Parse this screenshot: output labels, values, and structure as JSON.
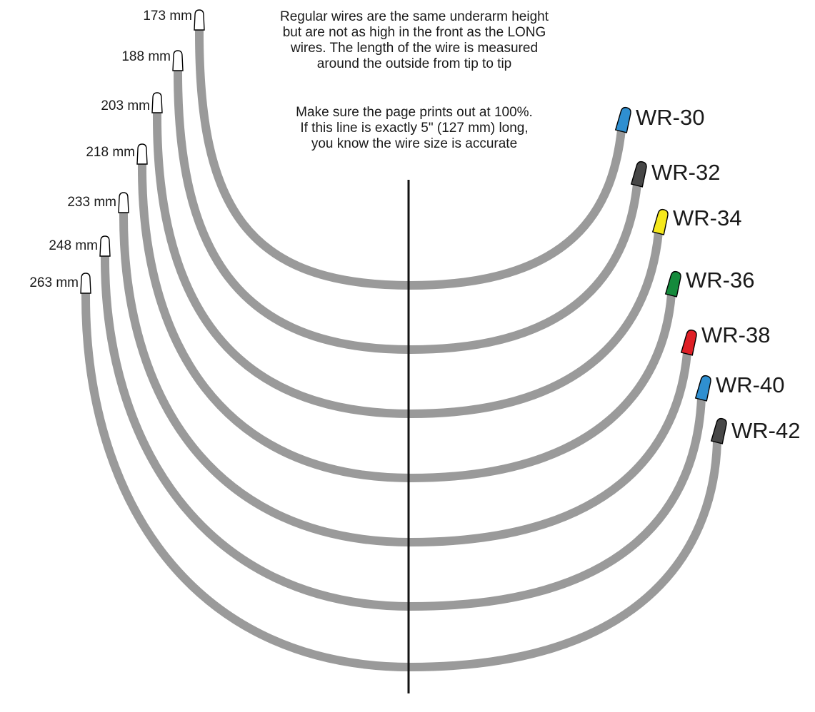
{
  "notes": {
    "paragraph_1": [
      "Regular  wires are the same underarm height",
      "but are not as high in the front as the LONG",
      "wires. The length of the wire is measured",
      "around the outside from tip to tip"
    ],
    "paragraph_2": [
      "Make sure the page prints out at 100%.",
      "If this line is exactly 5\" (127 mm) long,",
      "you know the wire size is accurate"
    ]
  },
  "colors": {
    "wire": "#9a9a9a",
    "reference_line": "#111111",
    "left_tip": "#ffffff"
  },
  "wires": [
    {
      "size": "WR-30",
      "length": "173 mm",
      "tip_color": "#2f8fd0"
    },
    {
      "size": "WR-32",
      "length": "188 mm",
      "tip_color": "#474747"
    },
    {
      "size": "WR-34",
      "length": "203 mm",
      "tip_color": "#f5e81c"
    },
    {
      "size": "WR-36",
      "length": "218 mm",
      "tip_color": "#158a3c"
    },
    {
      "size": "WR-38",
      "length": "233 mm",
      "tip_color": "#de1f26"
    },
    {
      "size": "WR-40",
      "length": "248 mm",
      "tip_color": "#2f8fd0"
    },
    {
      "size": "WR-42",
      "length": "263 mm",
      "tip_color": "#474747"
    }
  ]
}
